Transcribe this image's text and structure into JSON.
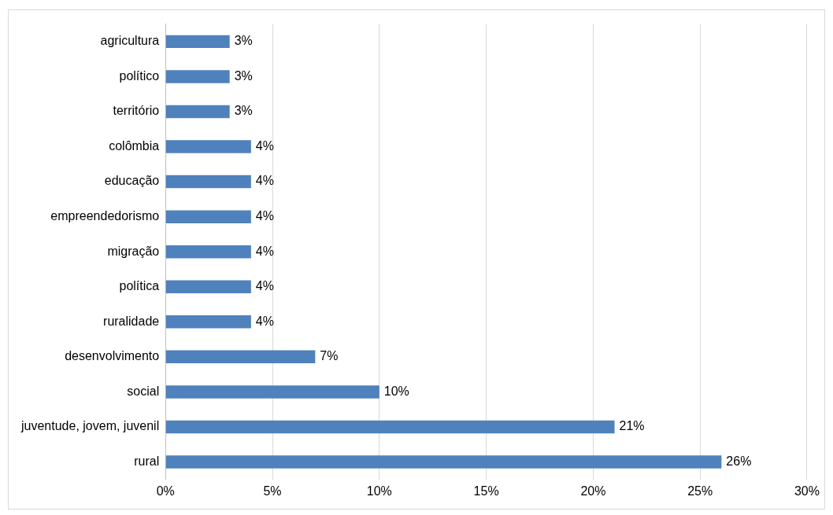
{
  "chart_data": {
    "type": "bar",
    "orientation": "horizontal",
    "categories": [
      "agricultura",
      "político",
      "território",
      "colômbia",
      "educação",
      "empreendedorismo",
      "migração",
      "política",
      "ruralidade",
      "desenvolvimento",
      "social",
      "juventude, jovem, juvenil",
      "rural"
    ],
    "values": [
      3,
      3,
      3,
      4,
      4,
      4,
      4,
      4,
      4,
      7,
      10,
      21,
      26
    ],
    "color": "#4f81bd",
    "value_labels": [
      "3%",
      "3%",
      "3%",
      "4%",
      "4%",
      "4%",
      "4%",
      "4%",
      "4%",
      "7%",
      "10%",
      "21%",
      "26%"
    ],
    "xlim": [
      0,
      30
    ],
    "xticks": [
      {
        "value": 0,
        "label": "0%"
      },
      {
        "value": 5,
        "label": "5%"
      },
      {
        "value": 10,
        "label": "10%"
      },
      {
        "value": 15,
        "label": "15%"
      },
      {
        "value": 20,
        "label": "20%"
      },
      {
        "value": 25,
        "label": "25%"
      },
      {
        "value": 30,
        "label": "30%"
      }
    ],
    "grid": "x",
    "legend": false
  }
}
